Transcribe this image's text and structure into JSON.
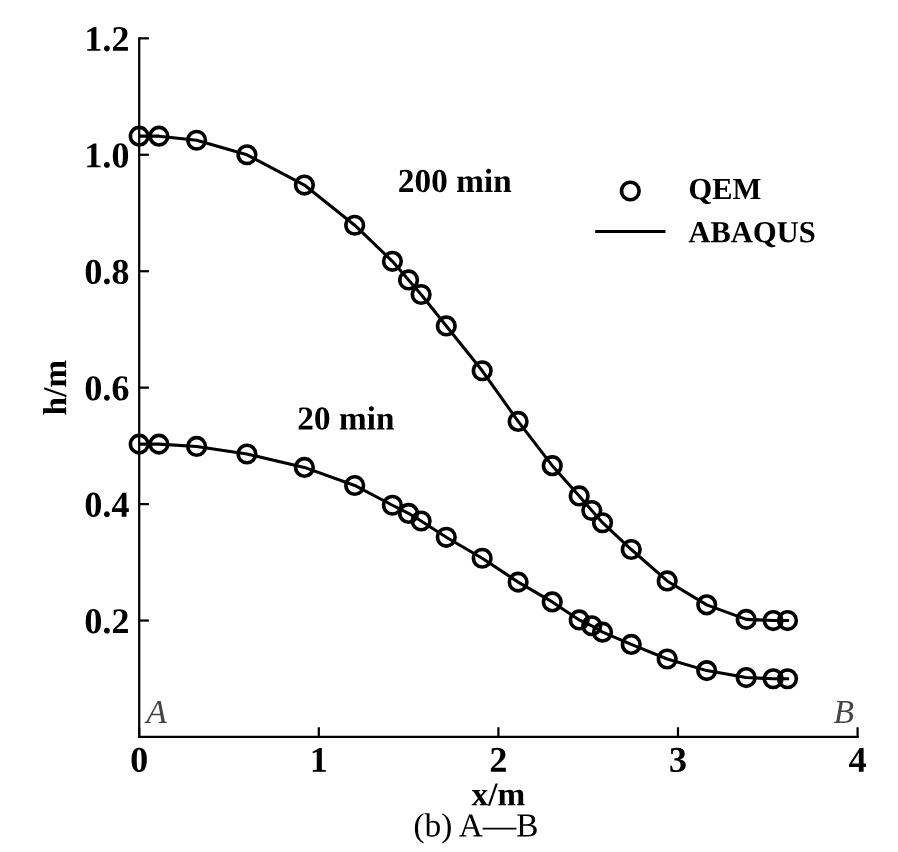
{
  "chart_data": {
    "type": "line",
    "xlabel": "x/m",
    "ylabel": "h/m",
    "x": [
      0,
      0.11,
      0.32,
      0.6,
      0.92,
      1.2,
      1.41,
      1.5,
      1.57,
      1.71,
      1.91,
      2.11,
      2.3,
      2.45,
      2.52,
      2.58,
      2.74,
      2.94,
      3.16,
      3.38,
      3.53,
      3.61
    ],
    "series": [
      {
        "name": "QEM",
        "type": "scatter",
        "marker": "circle",
        "color": "#000000",
        "values": [
          1.032,
          1.032,
          1.025,
          1.0,
          0.948,
          0.879,
          0.817,
          0.785,
          0.76,
          0.706,
          0.629,
          0.542,
          0.466,
          0.414,
          0.389,
          0.368,
          0.322,
          0.268,
          0.227,
          0.202,
          0.2,
          0.2
        ]
      },
      {
        "type": "scatter",
        "marker": "circle",
        "color": "#000000",
        "values": [
          0.503,
          0.503,
          0.499,
          0.486,
          0.463,
          0.432,
          0.398,
          0.384,
          0.371,
          0.343,
          0.307,
          0.266,
          0.232,
          0.201,
          0.191,
          0.18,
          0.159,
          0.134,
          0.114,
          0.102,
          0.1,
          0.1
        ]
      },
      {
        "name": "ABAQUS",
        "line_style": "solid",
        "color": "#000000",
        "values": [
          1.032,
          1.032,
          1.025,
          1.0,
          0.948,
          0.879,
          0.817,
          0.785,
          0.76,
          0.706,
          0.629,
          0.542,
          0.466,
          0.414,
          0.389,
          0.368,
          0.322,
          0.268,
          0.227,
          0.202,
          0.2,
          0.2
        ]
      },
      {
        "line_style": "solid",
        "color": "#000000",
        "values": [
          0.503,
          0.503,
          0.499,
          0.486,
          0.463,
          0.432,
          0.398,
          0.384,
          0.371,
          0.343,
          0.307,
          0.266,
          0.232,
          0.201,
          0.191,
          0.18,
          0.159,
          0.134,
          0.114,
          0.102,
          0.1,
          0.1
        ]
      }
    ],
    "xlim": [
      0,
      4
    ],
    "xticks": [
      0,
      1,
      2,
      3,
      4
    ],
    "ylim": [
      0,
      1.2
    ],
    "yticks": [
      {
        "value": 0.2,
        "label": "0.2"
      },
      {
        "value": 0.4,
        "label": "0.4"
      },
      {
        "value": 0.6,
        "label": "0.6"
      },
      {
        "value": 0.8,
        "label": "0.8"
      },
      {
        "value": 1.0,
        "label": "1.0"
      },
      {
        "value": 1.2,
        "label": "1.2"
      }
    ],
    "grid": false,
    "legend": "top right",
    "annotations": [
      "200 min",
      "20 min",
      "A",
      "B",
      "(b) A—B"
    ]
  }
}
